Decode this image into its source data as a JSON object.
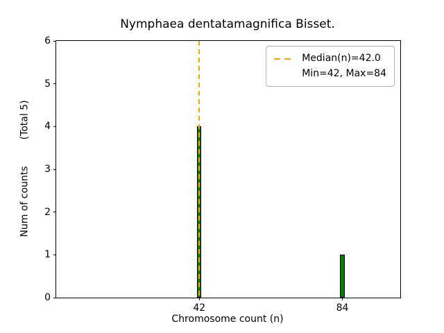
{
  "chart_data": {
    "type": "bar",
    "title": "Nymphaea dentatamagnifica Bisset.",
    "xlabel": "Chromosome count (n)",
    "ylabel": "Num of counts",
    "total_label": "(Total 5)",
    "xlim": [
      0,
      101
    ],
    "ylim": [
      0,
      6
    ],
    "xticks": [
      42,
      84
    ],
    "yticks": [
      0,
      1,
      2,
      3,
      4,
      5,
      6
    ],
    "bars": [
      {
        "x": 42,
        "count": 4
      },
      {
        "x": 84,
        "count": 1
      }
    ],
    "bar_width_units": 1.3,
    "median": {
      "value": 42.0,
      "label": "Median(n)=42.0"
    },
    "min": 42,
    "max": 84,
    "total_counts": 5,
    "legend": [
      {
        "sample": "dashed-orange-line",
        "label": "Median(n)=42.0"
      },
      {
        "sample": "none",
        "label": "Min=42, Max=84"
      }
    ],
    "legend_position": "upper right",
    "grid": false,
    "colors": {
      "bar_fill": "#008000",
      "bar_edge": "#000000",
      "median_line": "#FFA500",
      "axis": "#000000",
      "background": "#ffffff"
    }
  }
}
